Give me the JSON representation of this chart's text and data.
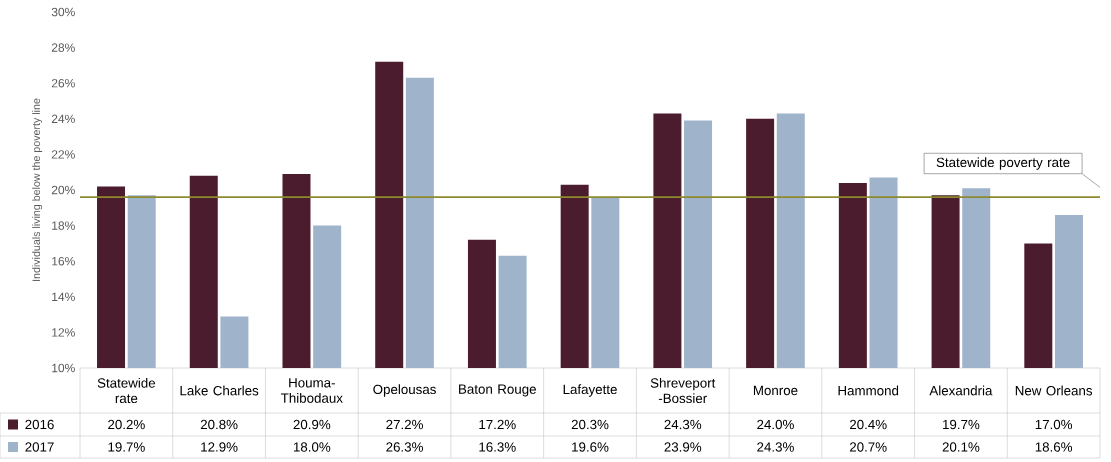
{
  "chart_data": {
    "type": "bar",
    "ylabel": "Individuals living below the poverty line",
    "categories": [
      "Statewide rate",
      "Lake Charles",
      "Houma-Thibodaux",
      "Opelousas",
      "Baton Rouge",
      "Lafayette",
      "Shreveport -Bossier",
      "Monroe",
      "Hammond",
      "Alexandria",
      "New Orleans"
    ],
    "series": [
      {
        "name": "2016",
        "color": "#4b1c2e",
        "values": [
          20.2,
          20.8,
          20.9,
          27.2,
          17.2,
          20.3,
          24.3,
          24.0,
          20.4,
          19.7,
          17.0
        ],
        "value_labels": [
          "20.2%",
          "20.8%",
          "20.9%",
          "27.2%",
          "17.2%",
          "20.3%",
          "24.3%",
          "24.0%",
          "20.4%",
          "19.7%",
          "17.0%"
        ]
      },
      {
        "name": "2017",
        "color": "#9fb3cb",
        "values": [
          19.7,
          12.9,
          18.0,
          26.3,
          16.3,
          19.6,
          23.9,
          24.3,
          20.7,
          20.1,
          18.6
        ],
        "value_labels": [
          "19.7%",
          "12.9%",
          "18.0%",
          "26.3%",
          "16.3%",
          "19.6%",
          "23.9%",
          "24.3%",
          "20.7%",
          "20.1%",
          "18.6%"
        ]
      }
    ],
    "ylim": [
      10,
      30
    ],
    "yticks": [
      {
        "value": 10,
        "label": "10%"
      },
      {
        "value": 12,
        "label": "12%"
      },
      {
        "value": 14,
        "label": "14%"
      },
      {
        "value": 16,
        "label": "16%"
      },
      {
        "value": 18,
        "label": "18%"
      },
      {
        "value": 20,
        "label": "20%"
      },
      {
        "value": 22,
        "label": "22%"
      },
      {
        "value": 24,
        "label": "24%"
      },
      {
        "value": 26,
        "label": "26%"
      },
      {
        "value": 28,
        "label": "28%"
      },
      {
        "value": 30,
        "label": "30%"
      }
    ],
    "ref_lines": [
      {
        "axis": "y",
        "value": 19.6,
        "label": "Statewide poverty rate",
        "color": "#8c8a2c"
      }
    ],
    "grid": false,
    "legend": "bottom"
  }
}
